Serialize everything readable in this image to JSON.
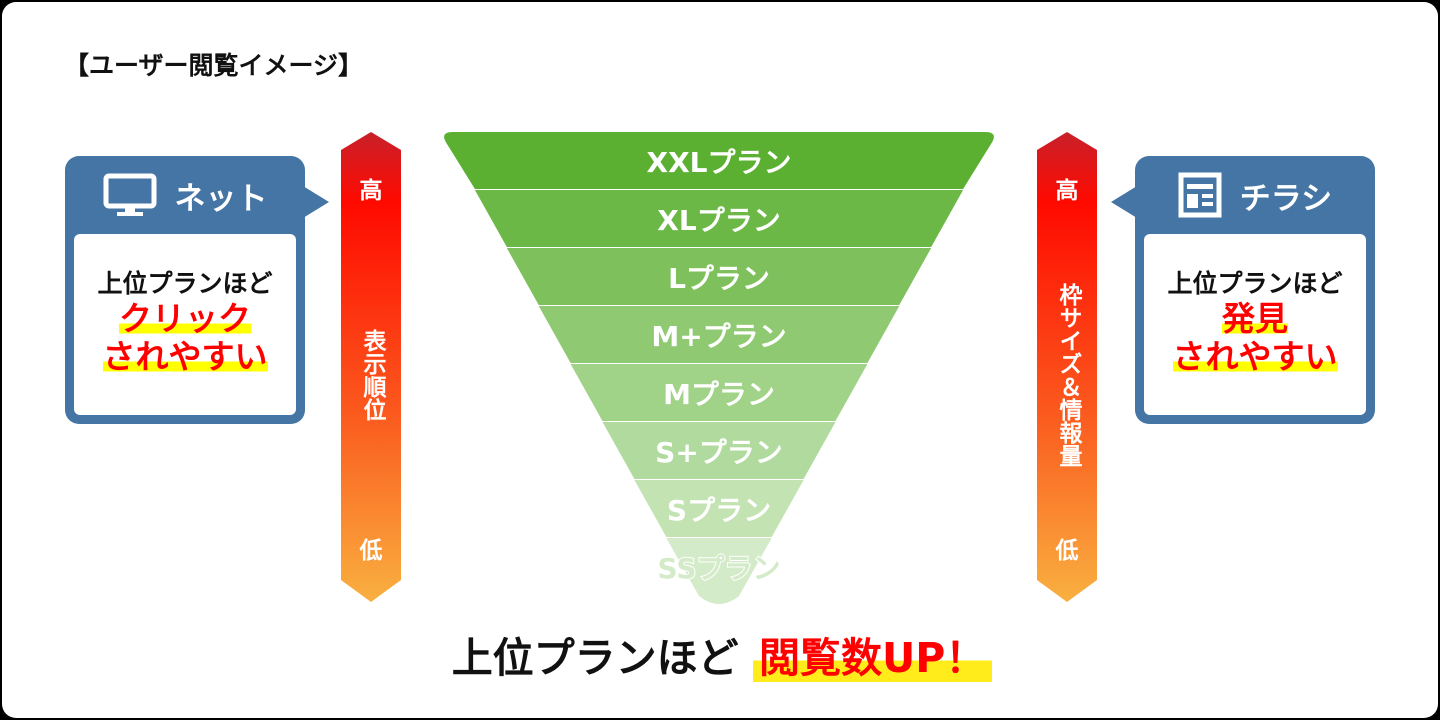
{
  "title": "【ユーザー閲覧イメージ】",
  "left_box": {
    "icon": "monitor-icon",
    "heading": "ネット",
    "line1": "上位プランほど",
    "line2": "クリック",
    "line3": "されやすい"
  },
  "right_box": {
    "icon": "flyer-icon",
    "heading": "チラシ",
    "line1": "上位プランほど",
    "line2": "発見",
    "line3": "されやすい"
  },
  "left_arrow": {
    "high": "高",
    "label": "表示順位",
    "low": "低"
  },
  "right_arrow": {
    "high": "高",
    "label": "枠サイズ＆情報量",
    "low": "低"
  },
  "funnel": [
    "XXLプラン",
    "XLプラン",
    "Lプラン",
    "M+プラン",
    "Mプラン",
    "S+プラン",
    "Sプラン",
    "SSプラン"
  ],
  "colors": {
    "box_blue": "#4575a5",
    "funnel_top": "#5bb031",
    "funnel_bottom": "#d4ebc9",
    "arrow_top": "#c8202a",
    "arrow_mid": "#ff0a00",
    "arrow_bottom": "#f9b040",
    "highlight": "#ffff00",
    "emphasis": "#ff0000"
  },
  "bottom": {
    "text": "上位プランほど",
    "emphasis": "閲覧数UP！"
  }
}
